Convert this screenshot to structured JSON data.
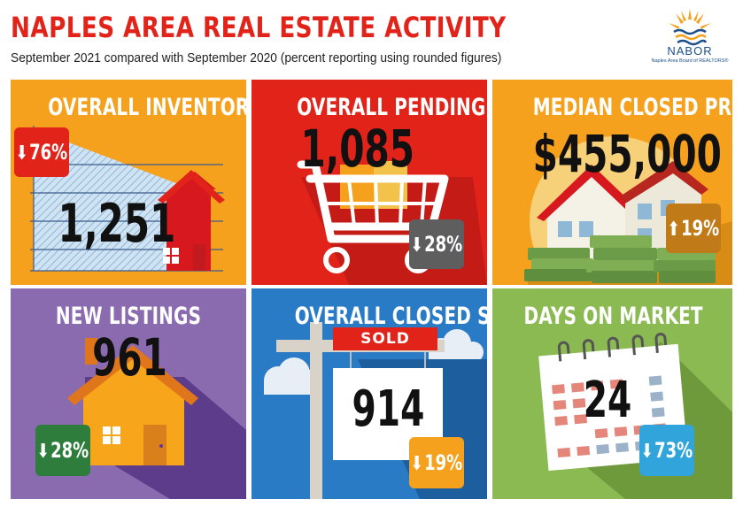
{
  "header": {
    "title": "NAPLES AREA REAL ESTATE ACTIVITY",
    "subtitle": "September 2021 compared with September 2020 (percent reporting using rounded figures)"
  },
  "logo": {
    "name": "NABOR",
    "subtitle": "Naples Area Board of REALTORS®",
    "icon": "sun-over-waves-logo"
  },
  "colors": {
    "title_red": "#e2231a",
    "inventory_bg": "#f5a11d",
    "pending_bg": "#e2231a",
    "price_bg": "#f5a11d",
    "listings_bg": "#8a6bb0",
    "closed_bg": "#2a7bc6",
    "dom_bg": "#8cba52",
    "badge_red": "#e2231a",
    "badge_grey": "#5e5e5e",
    "badge_brown": "#c07a18",
    "badge_green": "#2e7d3c",
    "badge_orange": "#f5a11d",
    "badge_blue": "#31a5db"
  },
  "panels": {
    "inventory": {
      "title": "OVERALL INVENTORY",
      "value": "1,251",
      "change": "76%",
      "direction": "down",
      "icon": "house-chart-icon"
    },
    "pending": {
      "title": "OVERALL PENDING SALES",
      "value": "1,085",
      "change": "28%",
      "direction": "down",
      "icon": "shopping-cart-icon"
    },
    "price": {
      "title": "MEDIAN CLOSED PRICE",
      "value": "$455,000",
      "change": "19%",
      "direction": "up",
      "icon": "house-money-icon"
    },
    "listings": {
      "title": "NEW LISTINGS",
      "value": "961",
      "change": "28%",
      "direction": "down",
      "icon": "house-icon"
    },
    "closed": {
      "title": "OVERALL CLOSED SALES",
      "value": "914",
      "change": "19%",
      "direction": "down",
      "icon": "sold-sign-icon",
      "sign_label": "SOLD"
    },
    "dom": {
      "title": "DAYS ON MARKET",
      "value": "24",
      "change": "73%",
      "direction": "down",
      "icon": "calendar-icon"
    }
  }
}
